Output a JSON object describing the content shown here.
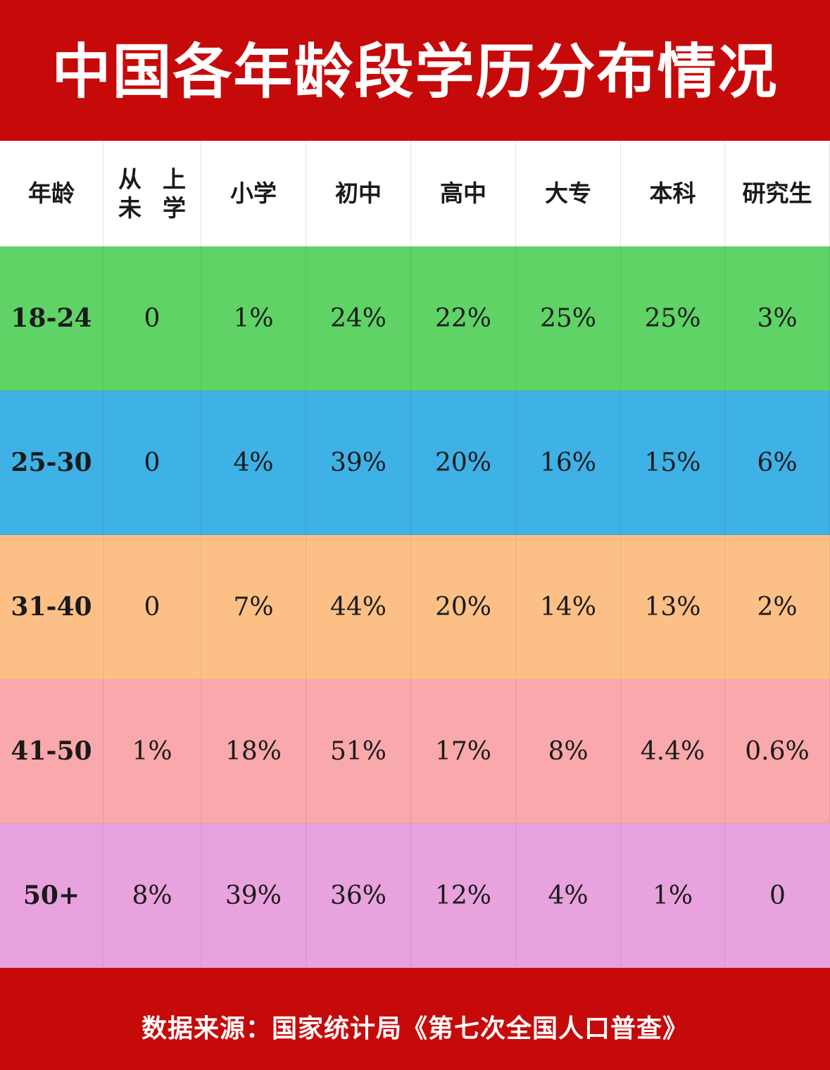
{
  "title": "中国各年龄段学历分布情况",
  "source": "数据来源：国家统计局《第七次全国人口普查》",
  "colors": {
    "header_bg": "#c60a0a",
    "row_18_24": "#5fd366",
    "row_25_30": "#3eb1e6",
    "row_31_40": "#fcc086",
    "row_41_50": "#f9a8ab",
    "row_50_plus": "#e8a2de"
  },
  "chart_data": {
    "type": "table",
    "title": "中国各年龄段学历分布情况",
    "columns": [
      {
        "lines": [
          "年龄"
        ]
      },
      {
        "lines": [
          "从未",
          "上学"
        ]
      },
      {
        "lines": [
          "小学"
        ]
      },
      {
        "lines": [
          "初中"
        ]
      },
      {
        "lines": [
          "高中"
        ]
      },
      {
        "lines": [
          "大专"
        ]
      },
      {
        "lines": [
          "本科"
        ]
      },
      {
        "lines": [
          "研究生"
        ]
      }
    ],
    "rows": [
      {
        "age": "18-24",
        "color": "#5fd366",
        "values": [
          "0",
          "1%",
          "24%",
          "22%",
          "25%",
          "25%",
          "3%"
        ]
      },
      {
        "age": "25-30",
        "color": "#3eb1e6",
        "values": [
          "0",
          "4%",
          "39%",
          "20%",
          "16%",
          "15%",
          "6%"
        ]
      },
      {
        "age": "31-40",
        "color": "#fcc086",
        "values": [
          "0",
          "7%",
          "44%",
          "20%",
          "14%",
          "13%",
          "2%"
        ]
      },
      {
        "age": "41-50",
        "color": "#f9a8ab",
        "values": [
          "1%",
          "18%",
          "51%",
          "17%",
          "8%",
          "4.4%",
          "0.6%"
        ]
      },
      {
        "age": "50+",
        "color": "#e8a2de",
        "values": [
          "8%",
          "39%",
          "36%",
          "12%",
          "4%",
          "1%",
          "0"
        ]
      }
    ]
  }
}
